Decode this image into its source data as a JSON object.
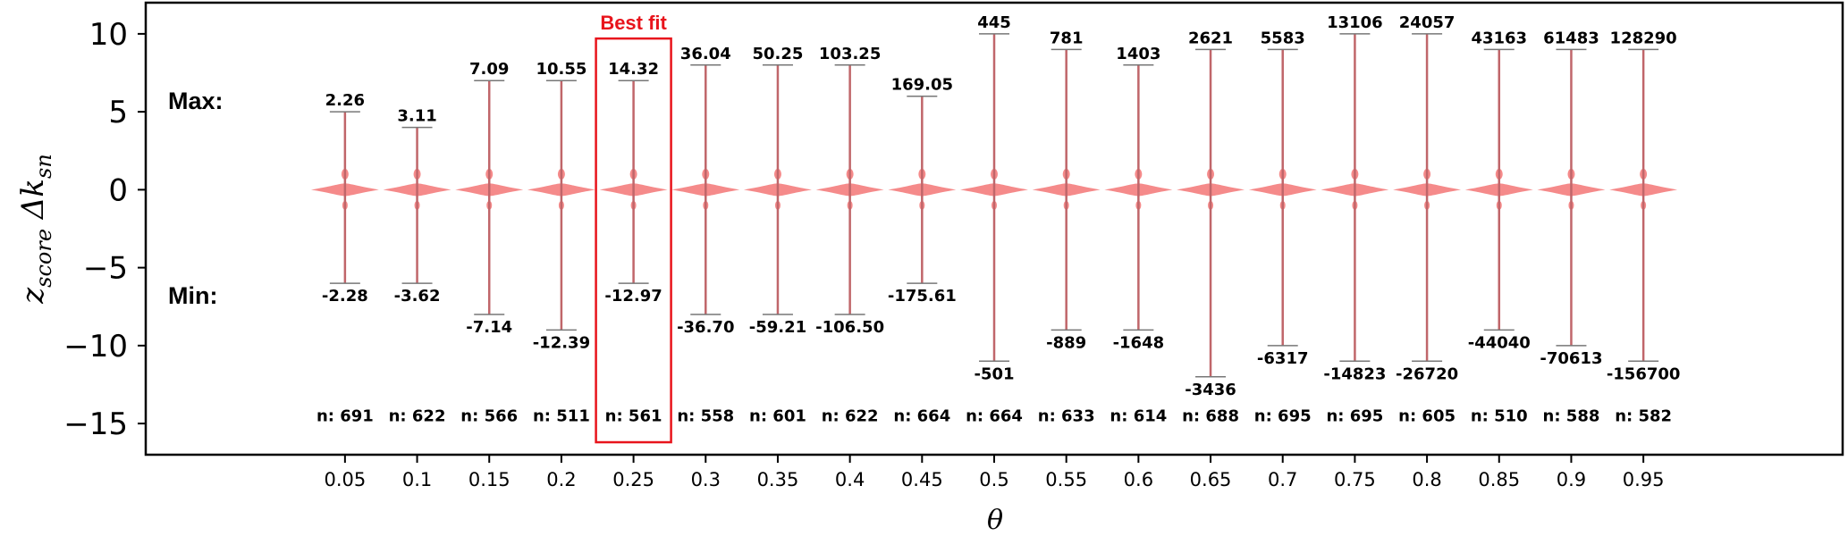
{
  "chart_data": {
    "type": "violin",
    "xlabel": "θ",
    "ylabel": {
      "var": "z",
      "sub": "score",
      "delta": "Δk",
      "sub2": "sn"
    },
    "ylim": [
      -17,
      12
    ],
    "yticks": [
      10,
      5,
      0,
      -5,
      -10,
      -15
    ],
    "ytick_labels": [
      "10",
      "5",
      "0",
      "−5",
      "−10",
      "−15"
    ],
    "categories": [
      "0.05",
      "0.1",
      "0.15",
      "0.2",
      "0.25",
      "0.3",
      "0.35",
      "0.4",
      "0.45",
      "0.5",
      "0.55",
      "0.6",
      "0.65",
      "0.7",
      "0.75",
      "0.8",
      "0.85",
      "0.9",
      "0.95"
    ],
    "whisker_max": [
      5,
      4,
      7,
      7,
      7,
      8,
      8,
      8,
      6,
      10,
      9,
      8,
      9,
      9,
      10,
      10,
      9,
      9,
      9
    ],
    "whisker_min": [
      -6,
      -6,
      -8,
      -9,
      -6,
      -8,
      -8,
      -8,
      -6,
      -11,
      -9,
      -9,
      -12,
      -10,
      -11,
      -11,
      -9,
      -10,
      -11
    ],
    "max_labels": [
      "2.26",
      "3.11",
      "7.09",
      "10.55",
      "14.32",
      "36.04",
      "50.25",
      "103.25",
      "169.05",
      "445",
      "781",
      "1403",
      "2621",
      "5583",
      "13106",
      "24057",
      "43163",
      "61483",
      "128290"
    ],
    "min_labels": [
      "-2.28",
      "-3.62",
      "-7.14",
      "-12.39",
      "-12.97",
      "-36.70",
      "-59.21",
      "-106.50",
      "-175.61",
      "-501",
      "-889",
      "-1648",
      "-3436",
      "-6317",
      "-14823",
      "-26720",
      "-44040",
      "-70613",
      "-156700"
    ],
    "n_labels": [
      "n: 691",
      "n: 622",
      "n: 566",
      "n: 511",
      "n: 561",
      "n: 558",
      "n: 601",
      "n: 622",
      "n: 664",
      "n: 664",
      "n: 633",
      "n: 614",
      "n: 688",
      "n: 695",
      "n: 695",
      "n: 605",
      "n: 510",
      "n: 588",
      "n: 582"
    ],
    "side_labels": {
      "max": "Max:",
      "min": "Min:"
    },
    "highlight": {
      "category": "0.25",
      "label": "Best fit"
    },
    "colors": {
      "violin": "#f58a8a",
      "whisker": "#c0666a",
      "highlight": "#e8141c"
    },
    "grid": false,
    "legend": false
  }
}
